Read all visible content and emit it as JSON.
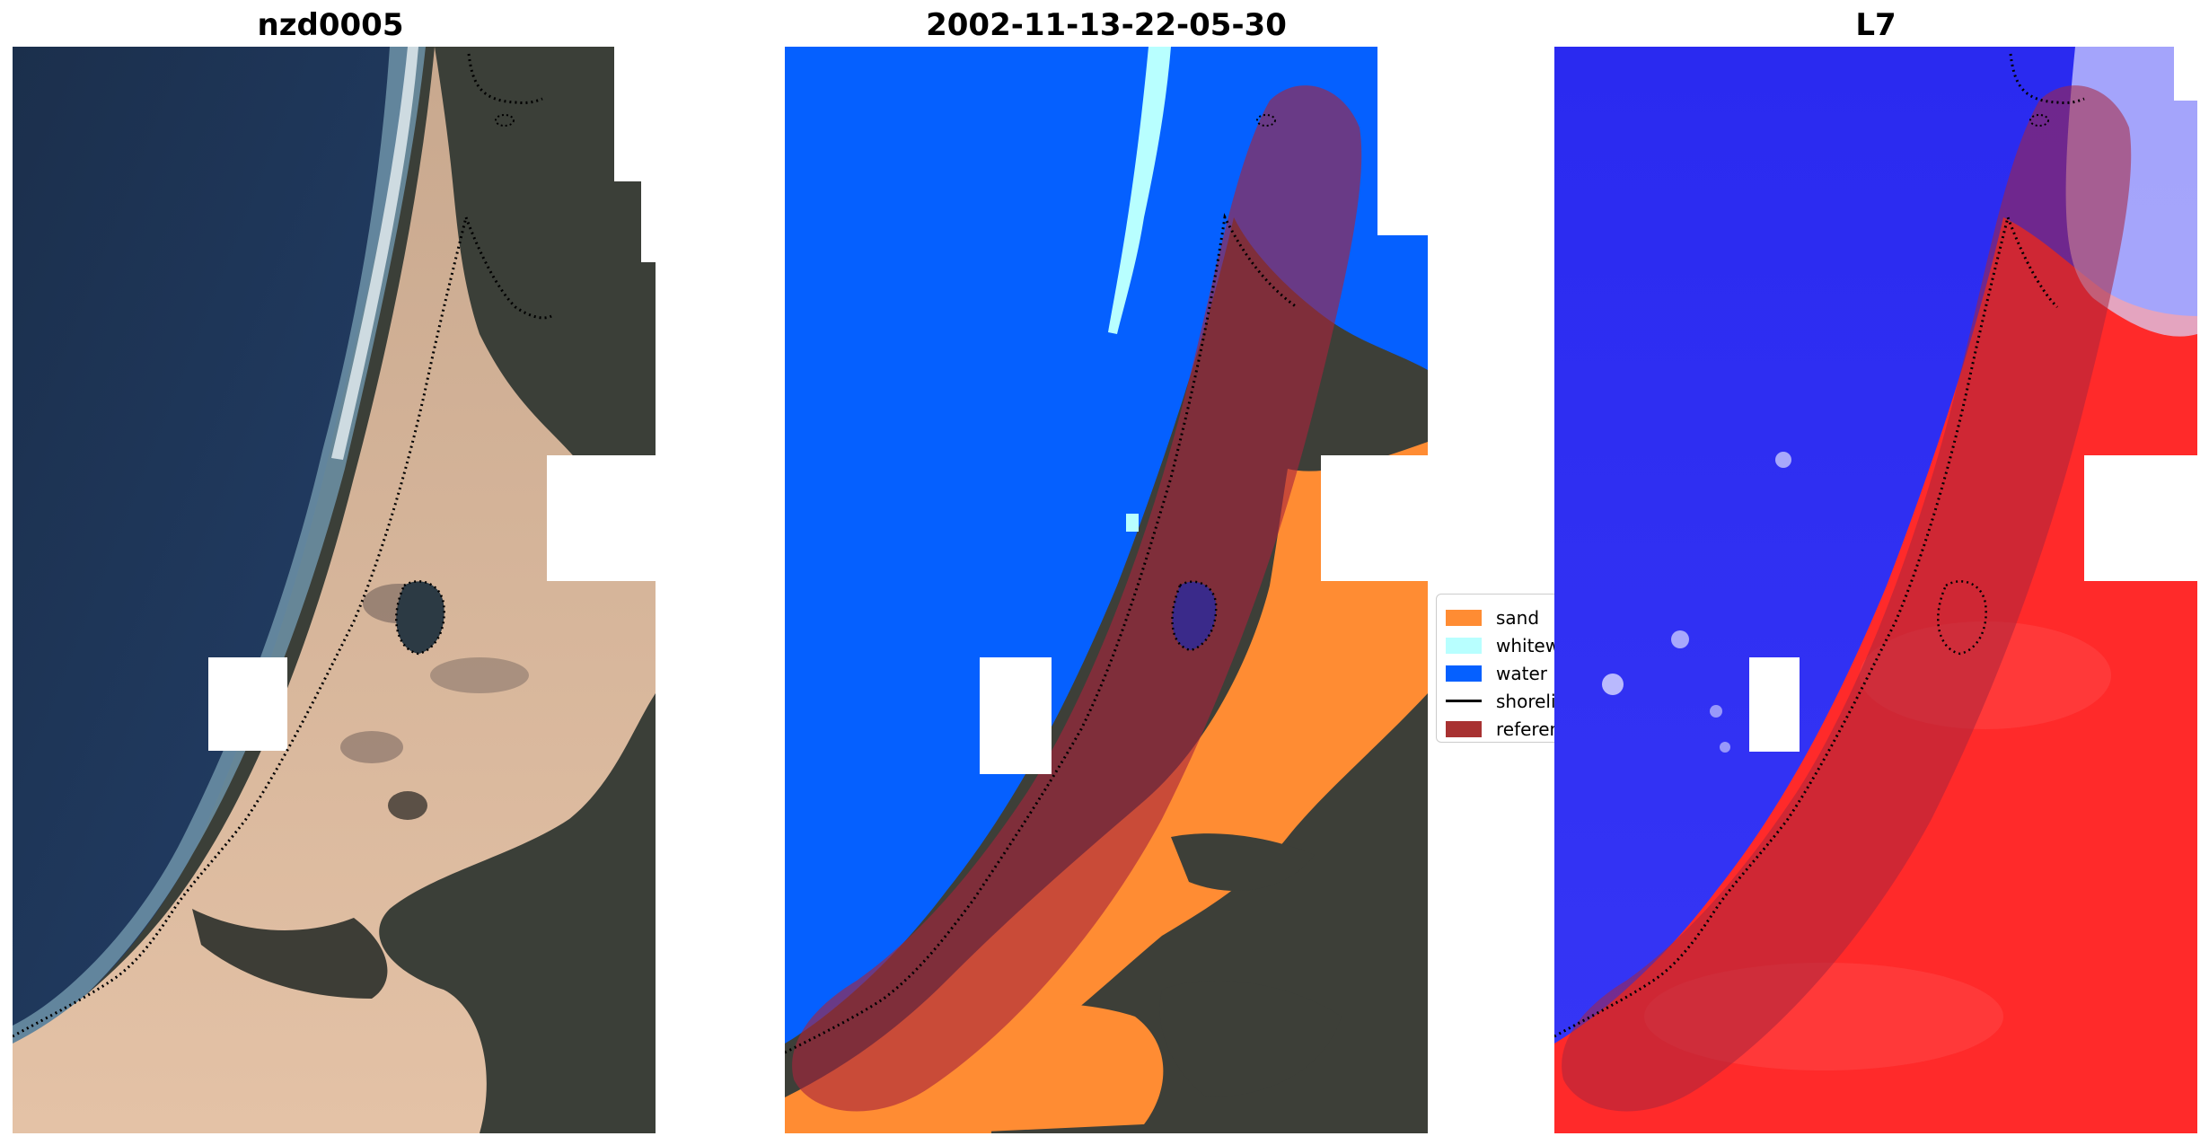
{
  "figure": {
    "panels": [
      {
        "title": "nzd0005",
        "content": "true-colour satellite image with dotted reference shoreline"
      },
      {
        "title": "2002-11-13-22-05-30",
        "content": "classified image with reference buffer overlay"
      },
      {
        "title": "L7",
        "content": "water index image with reference buffer overlay"
      }
    ]
  },
  "legend": {
    "items": [
      {
        "label": "sand",
        "color": "#ff8c33",
        "kind": "patch"
      },
      {
        "label": "whitewater",
        "color": "#b8ffff",
        "kind": "patch"
      },
      {
        "label": "water",
        "color": "#0060ff",
        "kind": "patch"
      },
      {
        "label": "shoreline",
        "color": "#000000",
        "kind": "line"
      },
      {
        "label": "reference shoreline buffer",
        "color": "#a83232",
        "kind": "patch"
      }
    ]
  },
  "colors": {
    "sand": "#ff8c33",
    "whitewater": "#b8ffff",
    "water": "#0060ff",
    "buffer": "#a8243c",
    "ocean": "#1f3554",
    "vegetation": "#3a3d34",
    "beach": "#e0b89c"
  }
}
